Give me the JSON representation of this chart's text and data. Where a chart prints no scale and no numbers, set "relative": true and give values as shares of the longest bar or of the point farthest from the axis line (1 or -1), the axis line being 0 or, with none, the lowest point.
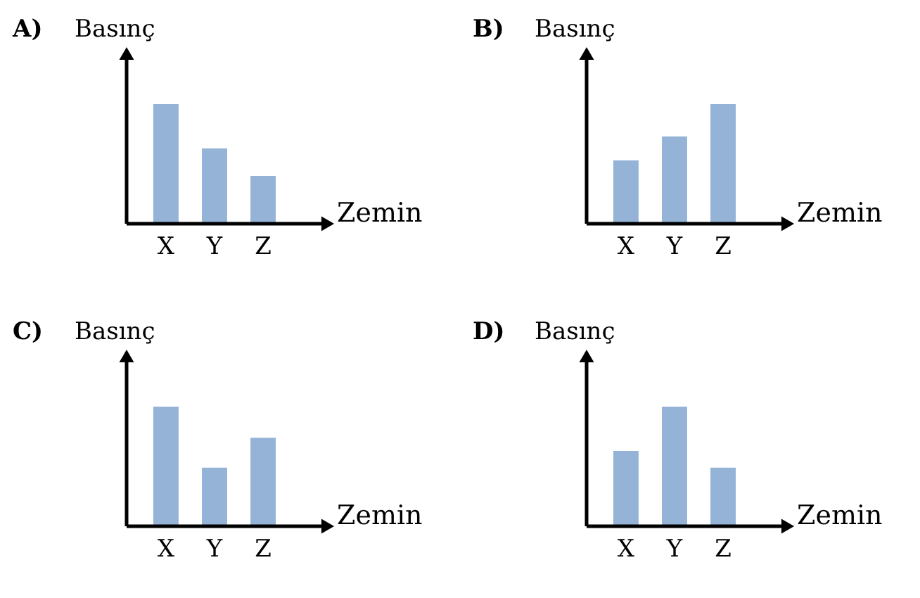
{
  "chart_data": [
    {
      "type": "bar",
      "title": "A)",
      "ylabel": "Basınç",
      "xlabel": "Zemin",
      "categories": [
        "X",
        "Y",
        "Z"
      ],
      "values": [
        1,
        0.63,
        0.4
      ],
      "color": "#94b3d7",
      "relative": true
    },
    {
      "type": "bar",
      "title": "B)",
      "ylabel": "Basınç",
      "xlabel": "Zemin",
      "categories": [
        "X",
        "Y",
        "Z"
      ],
      "values": [
        0.53,
        0.73,
        1
      ],
      "color": "#94b3d7",
      "relative": true
    },
    {
      "type": "bar",
      "title": "C)",
      "ylabel": "Basınç",
      "xlabel": "Zemin",
      "categories": [
        "X",
        "Y",
        "Z"
      ],
      "values": [
        1,
        0.49,
        0.74
      ],
      "color": "#94b3d7",
      "relative": true
    },
    {
      "type": "bar",
      "title": "D)",
      "ylabel": "Basınç",
      "xlabel": "Zemin",
      "categories": [
        "X",
        "Y",
        "Z"
      ],
      "values": [
        0.63,
        1,
        0.49
      ],
      "color": "#94b3d7",
      "relative": true
    }
  ]
}
